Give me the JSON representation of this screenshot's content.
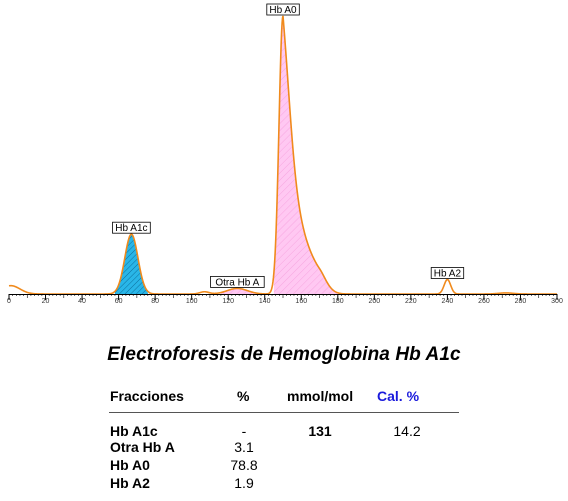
{
  "chart_data": {
    "type": "area",
    "xlim": [
      0,
      300
    ],
    "x_ticks": [
      0,
      20,
      40,
      60,
      80,
      100,
      120,
      140,
      160,
      180,
      200,
      220,
      240,
      260,
      280,
      300
    ],
    "curve_color": "#f08a1c",
    "peaks": [
      {
        "label": "Hb A1c",
        "center": 67,
        "height": 0.215,
        "start": 58,
        "end": 76,
        "fill": "#29b6e8",
        "pattern": "hatch-blue"
      },
      {
        "label": "Otra Hb A",
        "center": 125,
        "height": 0.02,
        "start": 116,
        "end": 135,
        "fill": "#f4b6e6",
        "pattern": "hatch-pink"
      },
      {
        "label": "Hb A0",
        "center": 150,
        "height": 1.0,
        "start": 145,
        "end": 180,
        "fill": "#ffc0f0",
        "pattern": "hatch-pink"
      },
      {
        "label": "Hb A2",
        "center": 240,
        "height": 0.052,
        "start": 235,
        "end": 246,
        "fill": "#ffffff",
        "pattern": "none"
      }
    ]
  },
  "report": {
    "title": "Electroforesis de Hemoglobina Hb A1c",
    "headers": {
      "fraction": "Fracciones",
      "pct": "%",
      "mmol": "mmol/mol",
      "cal": "Cal. %"
    },
    "header_cal_color": "#1a1adc",
    "rows": [
      {
        "name": "Hb A1c",
        "pct": "-",
        "mmol": "131",
        "cal": "14.2"
      },
      {
        "name": "Otra Hb A",
        "pct": "3.1",
        "mmol": "",
        "cal": ""
      },
      {
        "name": "Hb A0",
        "pct": "78.8",
        "mmol": "",
        "cal": ""
      },
      {
        "name": "Hb A2",
        "pct": "1.9",
        "mmol": "",
        "cal": ""
      }
    ]
  }
}
